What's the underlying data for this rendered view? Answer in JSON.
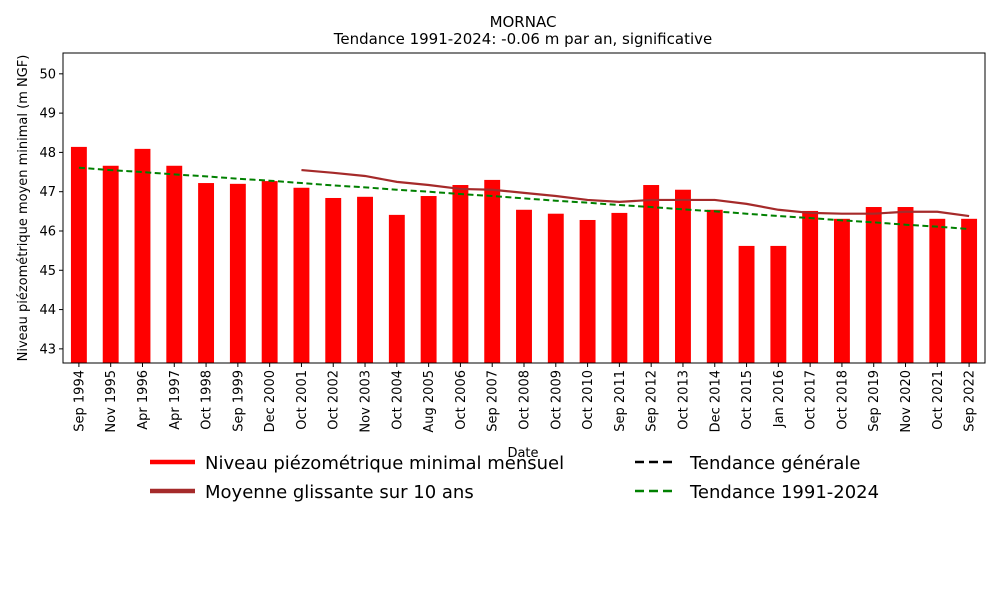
{
  "chart_data": {
    "type": "bar",
    "title": "MORNAC",
    "subtitle": "Tendance 1991-2024: -0.06 m par an, significative",
    "x_label": "Date",
    "y_label": "Niveau piézométrique moyen minimal (m NGF)",
    "categories": [
      "Sep 1994",
      "Nov 1995",
      "Apr 1996",
      "Apr 1997",
      "Oct 1998",
      "Sep 1999",
      "Dec 2000",
      "Oct 2001",
      "Oct 2002",
      "Nov 2003",
      "Oct 2004",
      "Aug 2005",
      "Oct 2006",
      "Sep 2007",
      "Oct 2008",
      "Oct 2009",
      "Oct 2010",
      "Sep 2011",
      "Sep 2012",
      "Oct 2013",
      "Dec 2014",
      "Oct 2015",
      "Jan 2016",
      "Oct 2017",
      "Oct 2018",
      "Sep 2019",
      "Nov 2020",
      "Oct 2021",
      "Sep 2022"
    ],
    "series": [
      {
        "name": "Niveau piézométrique minimal mensuel",
        "type": "bar",
        "color": "#ff0000",
        "values": [
          48.14,
          47.66,
          48.09,
          47.66,
          47.22,
          47.2,
          47.27,
          47.1,
          46.84,
          46.87,
          46.41,
          46.89,
          47.17,
          47.3,
          46.54,
          46.44,
          46.28,
          46.46,
          47.17,
          47.05,
          46.54,
          45.62,
          45.62,
          46.51,
          46.31,
          46.61,
          46.61,
          46.31,
          46.31
        ]
      },
      {
        "name": "Moyenne glissante sur 10 ans",
        "type": "line",
        "color": "#a52a2a",
        "dash": false,
        "values": [
          null,
          null,
          null,
          null,
          null,
          null,
          null,
          47.55,
          47.48,
          47.4,
          47.25,
          47.17,
          47.07,
          47.05,
          46.97,
          46.89,
          46.79,
          46.74,
          46.79,
          46.79,
          46.79,
          46.69,
          46.54,
          46.46,
          46.44,
          46.44,
          46.49,
          46.49,
          46.38
        ]
      },
      {
        "name": "Tendance générale",
        "type": "line",
        "color": "#000000",
        "dash": true,
        "values": [
          null,
          null,
          null,
          null,
          null,
          null,
          null,
          null,
          null,
          null,
          null,
          null,
          null,
          null,
          null,
          null,
          null,
          null,
          null,
          null,
          null,
          null,
          null,
          null,
          null,
          null,
          null,
          null,
          null
        ]
      },
      {
        "name": "Tendance 1991-2024",
        "type": "line",
        "color": "#008000",
        "dash": true,
        "values": [
          47.61,
          47.55,
          47.5,
          47.44,
          47.39,
          47.33,
          47.28,
          47.22,
          47.16,
          47.11,
          47.05,
          47.0,
          46.94,
          46.89,
          46.83,
          46.77,
          46.72,
          46.66,
          46.61,
          46.55,
          46.5,
          46.44,
          46.38,
          46.33,
          46.27,
          46.22,
          46.16,
          46.11,
          46.05
        ]
      }
    ],
    "ylim": [
      42.64,
      50.53
    ],
    "yticks": [
      43,
      44,
      45,
      46,
      47,
      48,
      49,
      50
    ],
    "grid": false
  }
}
